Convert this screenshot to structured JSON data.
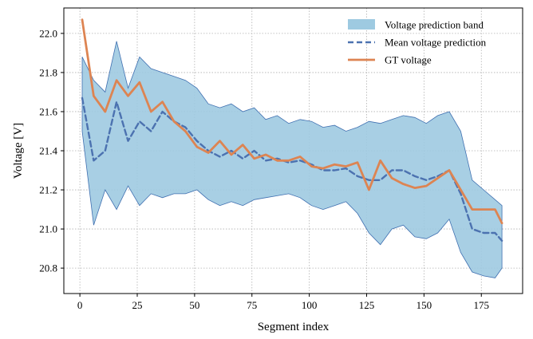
{
  "chart_data": {
    "type": "line",
    "xlabel": "Segment index",
    "ylabel": "Voltage [V]",
    "xlim": [
      -7,
      193
    ],
    "ylim": [
      20.67,
      22.13
    ],
    "xticks": [
      0,
      25,
      50,
      75,
      100,
      125,
      150,
      175
    ],
    "yticks": [
      20.8,
      21.0,
      21.2,
      21.4,
      21.6,
      21.8,
      22.0
    ],
    "xtick_labels": [
      "0",
      "25",
      "50",
      "75",
      "100",
      "125",
      "150",
      "175"
    ],
    "ytick_labels": [
      "20.8",
      "21.0",
      "21.2",
      "21.4",
      "21.6",
      "21.8",
      "22.0"
    ],
    "grid": true,
    "legend_position": "top-right",
    "x": [
      1,
      6,
      11,
      16,
      21,
      26,
      31,
      36,
      41,
      46,
      51,
      56,
      61,
      66,
      71,
      76,
      81,
      86,
      91,
      96,
      101,
      106,
      111,
      116,
      121,
      126,
      131,
      136,
      141,
      146,
      151,
      156,
      161,
      166,
      171,
      176,
      181,
      184
    ],
    "series": [
      {
        "name": "Voltage prediction band",
        "kind": "band",
        "color": "#9ecae1",
        "edge_color": "#3f6fb0",
        "upper": [
          21.88,
          21.76,
          21.7,
          21.96,
          21.72,
          21.88,
          21.82,
          21.8,
          21.78,
          21.76,
          21.72,
          21.64,
          21.62,
          21.64,
          21.6,
          21.62,
          21.56,
          21.58,
          21.54,
          21.56,
          21.55,
          21.52,
          21.53,
          21.5,
          21.52,
          21.55,
          21.54,
          21.56,
          21.58,
          21.57,
          21.54,
          21.58,
          21.6,
          21.5,
          21.25,
          21.2,
          21.15,
          21.12
        ],
        "lower": [
          21.5,
          21.02,
          21.2,
          21.1,
          21.22,
          21.12,
          21.18,
          21.16,
          21.18,
          21.18,
          21.2,
          21.15,
          21.12,
          21.14,
          21.12,
          21.15,
          21.16,
          21.17,
          21.18,
          21.16,
          21.12,
          21.1,
          21.12,
          21.14,
          21.08,
          20.98,
          20.92,
          21.0,
          21.02,
          20.96,
          20.95,
          20.98,
          21.05,
          20.88,
          20.78,
          20.76,
          20.75,
          20.8
        ]
      },
      {
        "name": "Mean voltage prediction",
        "kind": "line",
        "style": "dashed",
        "color": "#4c72b0",
        "values": [
          21.67,
          21.35,
          21.4,
          21.65,
          21.45,
          21.55,
          21.5,
          21.6,
          21.55,
          21.52,
          21.45,
          21.4,
          21.37,
          21.4,
          21.36,
          21.4,
          21.35,
          21.36,
          21.34,
          21.35,
          21.33,
          21.3,
          21.3,
          21.31,
          21.27,
          21.25,
          21.25,
          21.3,
          21.3,
          21.27,
          21.25,
          21.27,
          21.3,
          21.18,
          21.0,
          20.98,
          20.98,
          20.94
        ]
      },
      {
        "name": "GT voltage",
        "kind": "line",
        "style": "solid",
        "color": "#dd8452",
        "values": [
          22.07,
          21.68,
          21.6,
          21.76,
          21.68,
          21.75,
          21.6,
          21.65,
          21.55,
          21.5,
          21.42,
          21.39,
          21.45,
          21.38,
          21.43,
          21.36,
          21.38,
          21.35,
          21.35,
          21.37,
          21.32,
          21.31,
          21.33,
          21.32,
          21.34,
          21.2,
          21.35,
          21.26,
          21.23,
          21.21,
          21.22,
          21.26,
          21.3,
          21.2,
          21.1,
          21.1,
          21.1,
          21.03
        ]
      }
    ]
  }
}
